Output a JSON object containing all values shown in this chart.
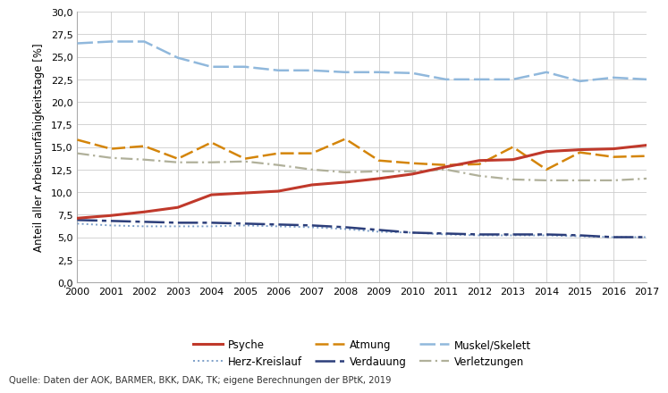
{
  "years": [
    2000,
    2001,
    2002,
    2003,
    2004,
    2005,
    2006,
    2007,
    2008,
    2009,
    2010,
    2011,
    2012,
    2013,
    2014,
    2015,
    2016,
    2017
  ],
  "Psyche": [
    7.1,
    7.4,
    7.8,
    8.3,
    9.7,
    9.9,
    10.1,
    10.8,
    11.1,
    11.5,
    12.0,
    12.8,
    13.5,
    13.6,
    14.5,
    14.7,
    14.8,
    15.2
  ],
  "Herz-Kreislauf": [
    6.5,
    6.3,
    6.2,
    6.2,
    6.2,
    6.3,
    6.2,
    6.1,
    5.9,
    5.6,
    5.5,
    5.3,
    5.2,
    5.2,
    5.2,
    5.1,
    5.0,
    5.0
  ],
  "Atmung": [
    15.8,
    14.8,
    15.1,
    13.7,
    15.5,
    13.7,
    14.3,
    14.3,
    15.9,
    13.5,
    13.2,
    13.0,
    13.1,
    15.0,
    12.5,
    14.4,
    13.9,
    14.0
  ],
  "Verdauung": [
    6.9,
    6.8,
    6.7,
    6.6,
    6.6,
    6.5,
    6.4,
    6.3,
    6.1,
    5.8,
    5.5,
    5.4,
    5.3,
    5.3,
    5.3,
    5.2,
    5.0,
    5.0
  ],
  "Muskel/Skelett": [
    26.5,
    26.7,
    26.7,
    24.9,
    23.9,
    23.9,
    23.5,
    23.5,
    23.3,
    23.3,
    23.2,
    22.5,
    22.5,
    22.5,
    23.3,
    22.3,
    22.7,
    22.5
  ],
  "Verletzungen": [
    14.3,
    13.8,
    13.6,
    13.3,
    13.3,
    13.4,
    13.0,
    12.5,
    12.2,
    12.3,
    12.3,
    12.5,
    11.8,
    11.4,
    11.3,
    11.3,
    11.3,
    11.5
  ],
  "colors": {
    "Psyche": "#c0392b",
    "Herz-Kreislauf": "#7b9ec8",
    "Atmung": "#d4850a",
    "Verdauung": "#2c3e7a",
    "Muskel/Skelett": "#90b8dc",
    "Verletzungen": "#b0b09a"
  },
  "ylabel": "Anteil aller Arbeitsunfähigkeitstage [%]",
  "ylim": [
    0,
    30
  ],
  "yticks": [
    0.0,
    2.5,
    5.0,
    7.5,
    10.0,
    12.5,
    15.0,
    17.5,
    20.0,
    22.5,
    25.0,
    27.5,
    30.0
  ],
  "source": "Quelle: Daten der AOK, BARMER, BKK, DAK, TK; eigene Berechnungen der BPtK, 2019",
  "background_color": "#ffffff",
  "grid_color": "#cccccc"
}
